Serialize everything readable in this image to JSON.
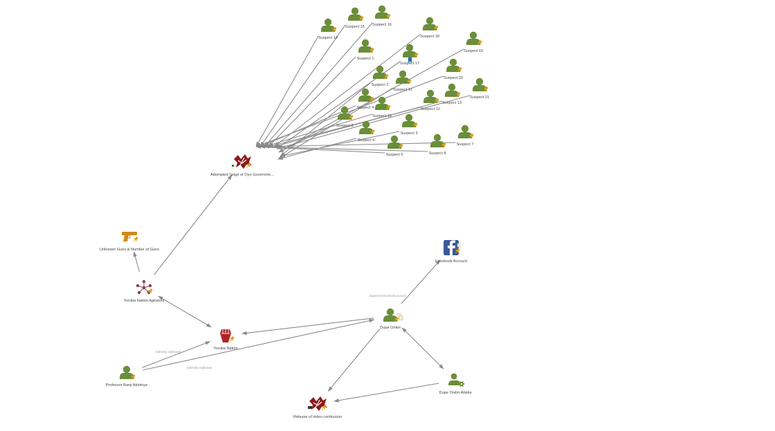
{
  "colors": {
    "person": "#6b8e3a",
    "pin": "#e0a020",
    "event": "#8b1a1a",
    "org": "#b02525",
    "gun": "#d08a18",
    "network": "#8b3a5a",
    "facebook": "#3b5998",
    "bookmark": "#1f6fbf",
    "edge": "#8a8a8a"
  },
  "nodes": [
    {
      "id": "s14",
      "type": "person",
      "icon": "person-icon",
      "label": "Suspect 14"
    },
    {
      "id": "s15",
      "type": "person",
      "icon": "person-icon",
      "label": "Suspect 15"
    },
    {
      "id": "s16",
      "type": "person",
      "icon": "person-icon",
      "label": "Suspect 16"
    },
    {
      "id": "s18",
      "type": "person",
      "icon": "person-icon",
      "label": "Suspect 18"
    },
    {
      "id": "s19",
      "type": "person",
      "icon": "person-icon",
      "label": "Suspect 19"
    },
    {
      "id": "s1",
      "type": "person",
      "icon": "person-icon",
      "label": "Suspect 1"
    },
    {
      "id": "s17",
      "type": "person",
      "icon": "person-icon",
      "label": "Suspect 17",
      "bookmark": true
    },
    {
      "id": "s20",
      "type": "person",
      "icon": "person-icon",
      "label": "Suspect 20"
    },
    {
      "id": "s2",
      "type": "person",
      "icon": "person-icon",
      "label": "Suspect 2"
    },
    {
      "id": "s11",
      "type": "person",
      "icon": "person-icon",
      "label": "Suspect 11"
    },
    {
      "id": "s21",
      "type": "person",
      "icon": "person-icon",
      "label": "Suspect 21"
    },
    {
      "id": "s4",
      "type": "person",
      "icon": "person-icon",
      "label": "Suspect 4"
    },
    {
      "id": "s13",
      "type": "person",
      "icon": "person-icon",
      "label": "Suspect 13"
    },
    {
      "id": "s10",
      "type": "person",
      "icon": "person-icon",
      "label": "Suspect 10"
    },
    {
      "id": "s12",
      "type": "person",
      "icon": "person-icon",
      "label": "Suspect 12"
    },
    {
      "id": "s9",
      "type": "person",
      "icon": "person-icon",
      "label": "Suspect 9"
    },
    {
      "id": "s3",
      "type": "person",
      "icon": "person-icon",
      "label": "Suspect 3"
    },
    {
      "id": "s6",
      "type": "person",
      "icon": "person-icon",
      "label": "Suspect 6"
    },
    {
      "id": "s7",
      "type": "person",
      "icon": "person-icon",
      "label": "Suspect 7"
    },
    {
      "id": "s8",
      "type": "person",
      "icon": "person-icon",
      "label": "Suspect 8"
    },
    {
      "id": "s5",
      "type": "person",
      "icon": "person-icon",
      "label": "Suspect 5"
    },
    {
      "id": "siege",
      "type": "event",
      "icon": "event-icon",
      "label": "Attempted Seige of Oyo Governme..."
    },
    {
      "id": "guns",
      "type": "gun",
      "icon": "gun-icon",
      "label": "Unknown Guns & Number of Guns"
    },
    {
      "id": "agitators",
      "type": "network",
      "icon": "network-icon",
      "label": "Yoruba Nation Agitators"
    },
    {
      "id": "nation",
      "type": "org",
      "icon": "raised-fist-icon",
      "label": "Yoruba Nation"
    },
    {
      "id": "banji",
      "type": "person",
      "icon": "person-icon",
      "label": "Professor Banji Akintoye"
    },
    {
      "id": "video",
      "type": "event",
      "icon": "event-icon",
      "label": "Release of video confession"
    },
    {
      "id": "dupe",
      "type": "person",
      "icon": "person-icon",
      "label": "Dupe Onitiri",
      "doc": true
    },
    {
      "id": "facebook",
      "type": "facebook",
      "icon": "facebook-icon",
      "label": "Facebook Account"
    },
    {
      "id": "dupe2",
      "type": "person-gear",
      "icon": "person-gear-icon",
      "label": "Dupe Onitiri-Abiola"
    }
  ],
  "edges": [
    {
      "from": "s14",
      "to": "siege"
    },
    {
      "from": "s15",
      "to": "siege"
    },
    {
      "from": "s16",
      "to": "siege"
    },
    {
      "from": "s1",
      "to": "siege"
    },
    {
      "from": "s18",
      "to": "siege"
    },
    {
      "from": "s17",
      "to": "siege"
    },
    {
      "from": "s19",
      "to": "siege"
    },
    {
      "from": "s2",
      "to": "siege"
    },
    {
      "from": "s11",
      "to": "siege"
    },
    {
      "from": "s20",
      "to": "siege"
    },
    {
      "from": "s4",
      "to": "siege"
    },
    {
      "from": "s10",
      "to": "siege"
    },
    {
      "from": "s12",
      "to": "siege"
    },
    {
      "from": "s13",
      "to": "siege"
    },
    {
      "from": "s21",
      "to": "siege"
    },
    {
      "from": "s9",
      "to": "siege"
    },
    {
      "from": "s3",
      "to": "siege"
    },
    {
      "from": "s6",
      "to": "siege"
    },
    {
      "from": "s5",
      "to": "siege"
    },
    {
      "from": "s8",
      "to": "siege"
    },
    {
      "from": "s7",
      "to": "siege"
    },
    {
      "from": "agitators",
      "to": "siege"
    },
    {
      "from": "agitators",
      "to": "guns"
    },
    {
      "from": "agitators",
      "to": "nation",
      "bidirectional": true
    },
    {
      "from": "banji",
      "to": "nation",
      "label": "Indirectly implicated"
    },
    {
      "from": "banji",
      "to": "dupe",
      "label": "Indirectly implicated"
    },
    {
      "from": "dupe",
      "to": "nation"
    },
    {
      "from": "dupe",
      "to": "facebook",
      "label": "Suspected facebook account"
    },
    {
      "from": "dupe",
      "to": "video"
    },
    {
      "from": "dupe",
      "to": "dupe2",
      "bidirectional": true
    },
    {
      "from": "dupe2",
      "to": "video"
    }
  ]
}
